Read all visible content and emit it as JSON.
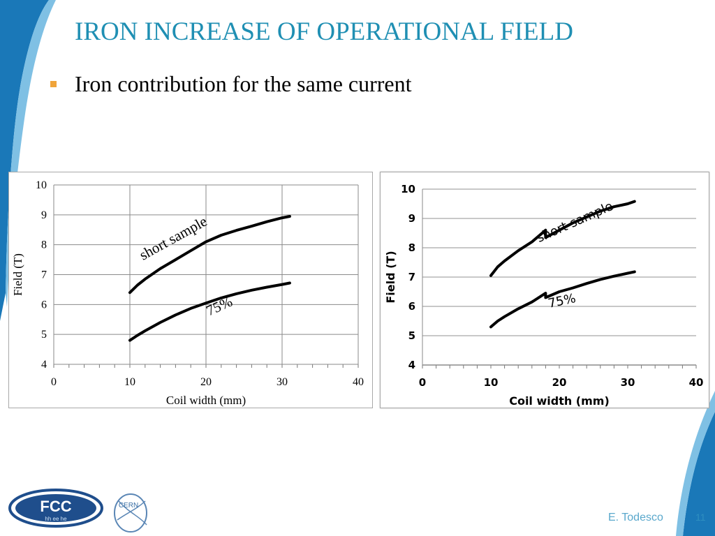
{
  "slide": {
    "title": "IRON INCREASE OF OPERATIONAL FIELD",
    "bullet": "Iron contribution for the same current",
    "author": "E. Todesco",
    "page_number": "11",
    "logos": {
      "fcc_text": "FCC",
      "fcc_sub": "hh ee he",
      "cern_text": "CERN"
    },
    "colors": {
      "title": "#1f8fb3",
      "bullet": "#f0a43a",
      "accent_blue": "#1a7fb5"
    }
  },
  "chart_data": [
    {
      "type": "line",
      "title": "",
      "xlabel": "Coil width (mm)",
      "ylabel": "Field (T)",
      "xlim": [
        0,
        40
      ],
      "ylim": [
        4,
        10
      ],
      "x_ticks": [
        0,
        10,
        20,
        30,
        40
      ],
      "y_ticks": [
        4,
        5,
        6,
        7,
        8,
        9,
        10
      ],
      "grid": true,
      "series": [
        {
          "label": "short sample",
          "x": [
            10,
            11,
            12,
            14,
            16,
            18,
            20,
            22,
            24,
            26,
            28,
            30,
            31
          ],
          "y": [
            6.4,
            6.65,
            6.85,
            7.2,
            7.5,
            7.8,
            8.1,
            8.32,
            8.48,
            8.62,
            8.77,
            8.9,
            8.95
          ]
        },
        {
          "label": "75%",
          "x": [
            10,
            11,
            12,
            14,
            16,
            18,
            20,
            22,
            24,
            26,
            28,
            30,
            31
          ],
          "y": [
            4.8,
            4.97,
            5.12,
            5.4,
            5.65,
            5.87,
            6.05,
            6.22,
            6.36,
            6.48,
            6.58,
            6.67,
            6.72
          ]
        }
      ]
    },
    {
      "type": "line",
      "title": "",
      "xlabel": "Coil width (mm)",
      "ylabel": "Field (T)",
      "xlim": [
        0,
        40
      ],
      "ylim": [
        4,
        10
      ],
      "x_ticks": [
        0,
        10,
        20,
        30,
        40
      ],
      "y_ticks": [
        4,
        5,
        6,
        7,
        8,
        9,
        10
      ],
      "grid": true,
      "series": [
        {
          "label": "short sample",
          "x": [
            10,
            11,
            12,
            14,
            16,
            18,
            18,
            20,
            22,
            24,
            26,
            28,
            30,
            31
          ],
          "y": [
            7.05,
            7.35,
            7.55,
            7.9,
            8.2,
            8.6,
            8.35,
            8.6,
            8.85,
            9.05,
            9.25,
            9.4,
            9.5,
            9.58
          ]
        },
        {
          "label": "75%",
          "x": [
            10,
            11,
            12,
            14,
            16,
            18,
            18,
            20,
            22,
            24,
            26,
            28,
            30,
            31
          ],
          "y": [
            5.3,
            5.5,
            5.65,
            5.92,
            6.15,
            6.45,
            6.3,
            6.5,
            6.63,
            6.78,
            6.92,
            7.03,
            7.13,
            7.18
          ]
        }
      ]
    }
  ]
}
